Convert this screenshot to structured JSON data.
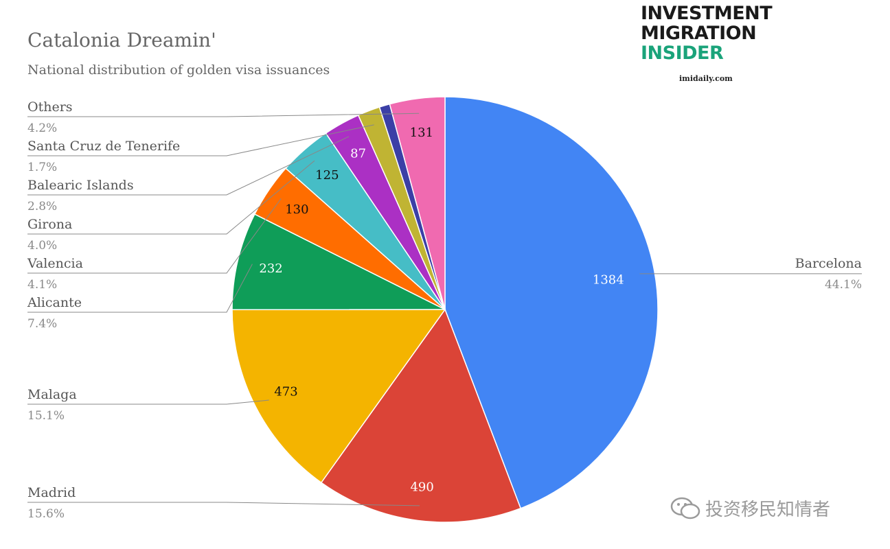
{
  "chart_data": {
    "type": "pie",
    "title": "Catalonia Dreamin'",
    "subtitle": "National distribution of golden visa issuances",
    "slices": [
      {
        "label": "Barcelona",
        "value": 1384,
        "percent": "44.1%",
        "color": "#4285f4",
        "text_color": "#ffffff",
        "value_label": "1384"
      },
      {
        "label": "Madrid",
        "value": 490,
        "percent": "15.6%",
        "color": "#db4437",
        "text_color": "#ffffff",
        "value_label": "490"
      },
      {
        "label": "Malaga",
        "value": 473,
        "percent": "15.1%",
        "color": "#f4b400",
        "text_color": "#111111",
        "value_label": "473"
      },
      {
        "label": "Alicante",
        "value": 232,
        "percent": "7.4%",
        "color": "#0f9d58",
        "text_color": "#ffffff",
        "value_label": "232"
      },
      {
        "label": "Valencia",
        "value": 130,
        "percent": "4.1%",
        "color": "#ff6d00",
        "text_color": "#111111",
        "value_label": "130"
      },
      {
        "label": "Girona",
        "value": 125,
        "percent": "4.0%",
        "color": "#46bdc6",
        "text_color": "#111111",
        "value_label": "125"
      },
      {
        "label": "Balearic Islands",
        "value": 87,
        "percent": "2.8%",
        "color": "#ab30c4",
        "text_color": "#ffffff",
        "value_label": "87"
      },
      {
        "label": "Santa Cruz de Tenerife",
        "value": 53,
        "percent": "1.7%",
        "color": "#c0b433",
        "text_color": "#111111",
        "value_label": ""
      },
      {
        "label": "",
        "value": 25,
        "percent": "",
        "color": "#3b3fa6",
        "text_color": "#ffffff",
        "value_label": ""
      },
      {
        "label": "Others",
        "value": 131,
        "percent": "4.2%",
        "color": "#f06ab0",
        "text_color": "#111111",
        "value_label": "131"
      }
    ],
    "legend": "left-and-right callouts"
  },
  "logo": {
    "line1": "INVESTMENT",
    "line2": "MIGRATION",
    "line3": "INSIDER",
    "site": "imidaily.com",
    "dark_color": "#1a1a1a",
    "accent_color": "#1aa37a"
  },
  "watermark": {
    "text": "投资移民知情者",
    "icon": "wechat-icon"
  }
}
